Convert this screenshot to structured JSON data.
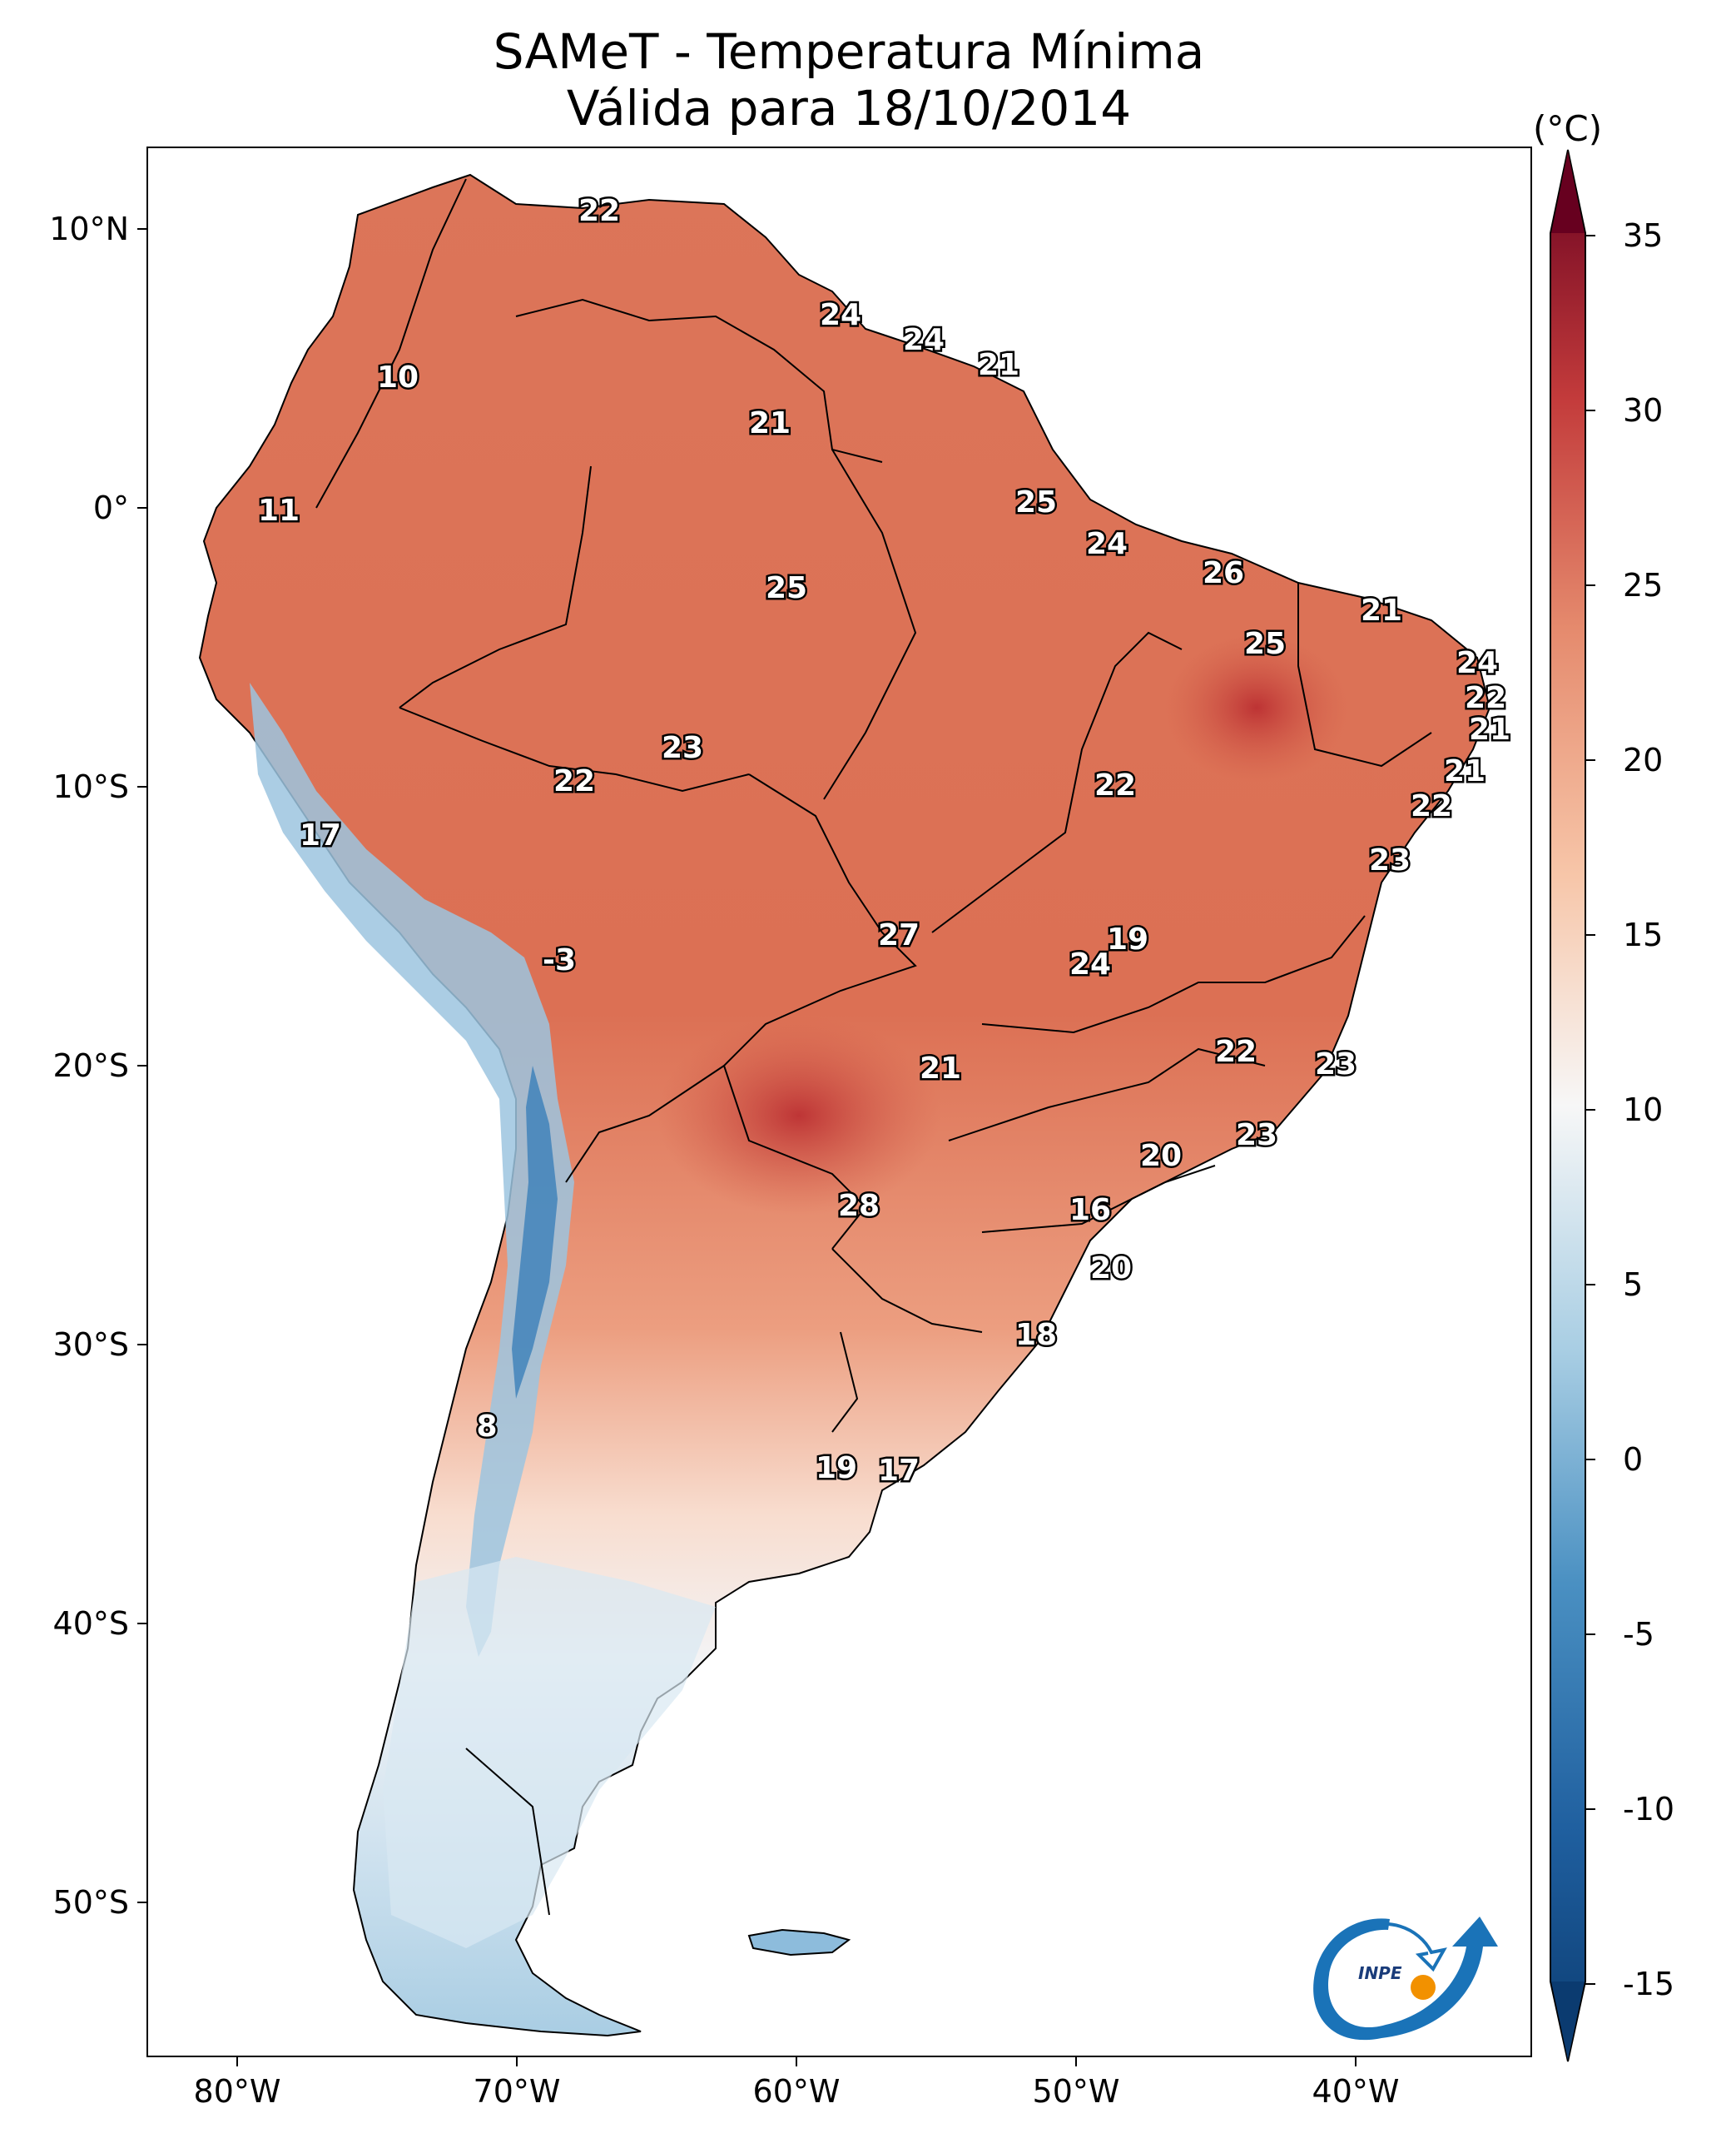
{
  "title": {
    "line1": "SAMeT - Temperatura Mínima",
    "line2": "Válida para 18/10/2014"
  },
  "axes": {
    "lat_labels": [
      "10°N",
      "0°",
      "10°S",
      "20°S",
      "30°S",
      "40°S",
      "50°S"
    ],
    "lon_labels": [
      "80°W",
      "70°W",
      "60°W",
      "50°W",
      "40°W"
    ]
  },
  "colorbar": {
    "unit": "(°C)",
    "ticks": [
      "35",
      "30",
      "25",
      "20",
      "15",
      "10",
      "5",
      "0",
      "-5",
      "-10",
      "-15"
    ],
    "min": -15,
    "max": 35,
    "colors": {
      "coldest": "#0b3b70",
      "cold": "#2f7ab8",
      "cool": "#9cc9e1",
      "neutral": "#f7f7f7",
      "mild": "#f6c1a3",
      "warm": "#e4866a",
      "hot": "#c33b3b",
      "hottest": "#67001f"
    }
  },
  "station_labels": [
    "22",
    "24",
    "24",
    "21",
    "10",
    "21",
    "11",
    "25",
    "25",
    "24",
    "26",
    "21",
    "25",
    "24",
    "22",
    "21",
    "23",
    "22",
    "22",
    "21",
    "17",
    "22",
    "23",
    "19",
    "27",
    "24",
    "-3",
    "22",
    "23",
    "21",
    "23",
    "20",
    "28",
    "16",
    "20",
    "18",
    "8",
    "19",
    "17"
  ],
  "logo": {
    "text": "INPE",
    "blue": "#1a73b8",
    "orange": "#f29100"
  }
}
